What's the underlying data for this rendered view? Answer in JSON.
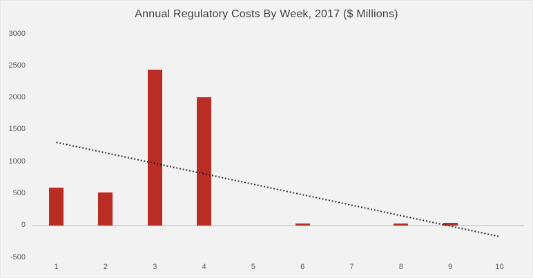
{
  "chart_data": {
    "type": "bar",
    "title": "Annual Regulatory Costs By Week, 2017 ($ Millions)",
    "xlabel": "",
    "ylabel": "",
    "categories": [
      "1",
      "2",
      "3",
      "4",
      "5",
      "6",
      "7",
      "8",
      "9",
      "10"
    ],
    "values": [
      590,
      520,
      2440,
      2010,
      0,
      25,
      0,
      25,
      35,
      0
    ],
    "series_name": "Annual Regulatory Costs",
    "ylim": [
      -500,
      3000
    ],
    "y_ticks": [
      3000,
      2500,
      2000,
      1500,
      1000,
      500,
      0,
      -500
    ],
    "grid": false,
    "legend": false,
    "trendline": {
      "style": "dotted",
      "start_week": 1,
      "start_value": 1300,
      "end_week": 10,
      "end_value": -175
    }
  },
  "colors": {
    "background": "#f2f2f2",
    "bar": "#b92d25",
    "trendline": "#1b1b2f",
    "axis_line": "#d6d6d6",
    "tick_text": "#595959",
    "title_text": "#3f3f3f"
  }
}
